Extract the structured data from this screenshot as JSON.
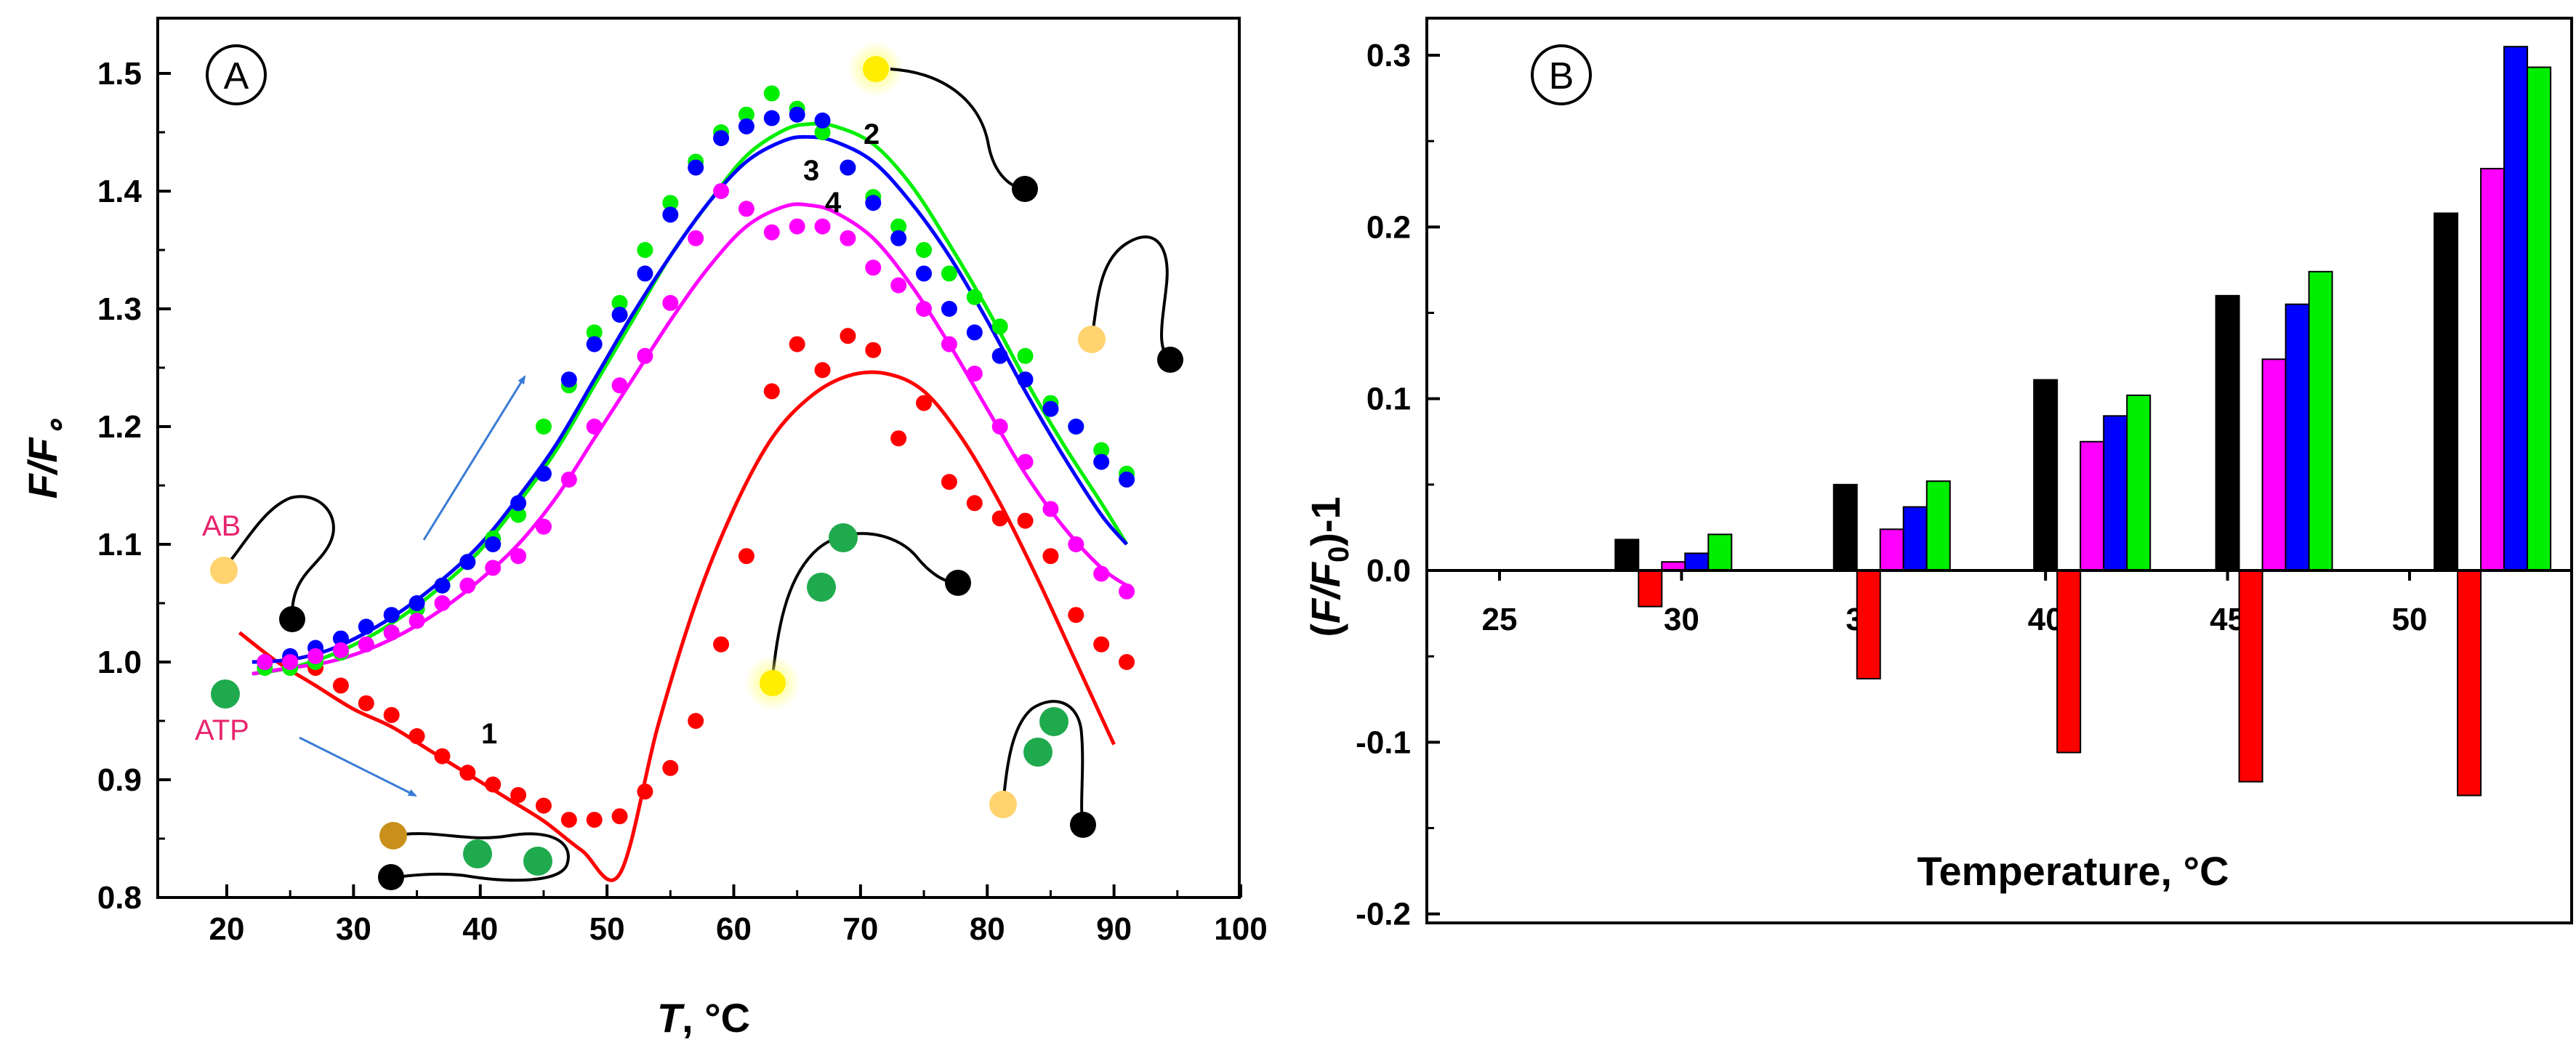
{
  "chart_data": [
    {
      "panel": "A",
      "type": "scatter",
      "xlabel": "T, °C",
      "xlabel_main": "T",
      "xlabel_unit": ", °C",
      "ylabel": "F/F∘",
      "ylabel_main": "F/F",
      "ylabel_sub": "∘",
      "xlim": [
        15,
        100
      ],
      "ylim": [
        0.8,
        1.55
      ],
      "xticks": [
        20,
        30,
        40,
        50,
        60,
        70,
        80,
        90,
        100
      ],
      "yticks": [
        0.8,
        0.9,
        1.0,
        1.1,
        1.2,
        1.3,
        1.4,
        1.5
      ],
      "xtick_labels": [
        "20",
        "30",
        "40",
        "50",
        "60",
        "70",
        "80",
        "90",
        "100"
      ],
      "ytick_labels": [
        "0.8",
        "0.9",
        "1.0",
        "1.1",
        "1.2",
        "1.3",
        "1.4",
        "1.5"
      ],
      "annotations": {
        "AB": "AB",
        "ATP": "ATP"
      },
      "series": [
        {
          "name": "1",
          "label": "1",
          "color": "#ff0000",
          "x": [
            23,
            25,
            27,
            29,
            31,
            33,
            35,
            37,
            39,
            41,
            43,
            45,
            47,
            49,
            51,
            53,
            55,
            57,
            59,
            61,
            63,
            65,
            67,
            69,
            71,
            73,
            75,
            77,
            79,
            81,
            83,
            85,
            87,
            89,
            91
          ],
          "y": [
            1.0,
            1.003,
            0.995,
            0.98,
            0.965,
            0.955,
            0.937,
            0.92,
            0.906,
            0.896,
            0.887,
            0.878,
            0.866,
            0.866,
            0.869,
            0.89,
            0.91,
            0.95,
            1.015,
            1.09,
            1.23,
            1.27,
            1.248,
            1.277,
            1.265,
            1.19,
            1.22,
            1.153,
            1.135,
            1.122,
            1.12,
            1.09,
            1.04,
            1.015,
            1.0
          ],
          "fit_x": [
            21,
            24,
            27,
            30,
            33,
            36,
            39,
            42,
            45,
            48,
            51,
            54,
            57,
            60,
            63,
            66,
            69,
            72,
            75,
            78,
            81,
            84,
            87,
            90
          ],
          "fit_y": [
            1.025,
            1.0,
            0.98,
            0.96,
            0.945,
            0.925,
            0.905,
            0.885,
            0.865,
            0.84,
            0.82,
            0.945,
            1.05,
            1.13,
            1.19,
            1.225,
            1.243,
            1.245,
            1.23,
            1.19,
            1.135,
            1.07,
            1.0,
            0.93
          ]
        },
        {
          "name": "2",
          "label": "2",
          "color": "#00ee00",
          "x": [
            23,
            25,
            27,
            29,
            31,
            33,
            35,
            37,
            39,
            41,
            43,
            45,
            47,
            49,
            51,
            53,
            55,
            57,
            59,
            61,
            63,
            65,
            67,
            69,
            71,
            73,
            75,
            77,
            79,
            81,
            83,
            85,
            87,
            89,
            91
          ],
          "y": [
            0.995,
            0.995,
            1.0,
            1.008,
            1.015,
            1.025,
            1.045,
            1.065,
            1.085,
            1.105,
            1.125,
            1.2,
            1.235,
            1.28,
            1.305,
            1.35,
            1.39,
            1.425,
            1.45,
            1.465,
            1.483,
            1.47,
            1.45,
            1.42,
            1.395,
            1.37,
            1.35,
            1.33,
            1.31,
            1.285,
            1.26,
            1.22,
            1.2,
            1.18,
            1.16
          ],
          "fit_x": [
            22,
            25,
            28,
            31,
            34,
            37,
            40,
            43,
            46,
            49,
            52,
            55,
            58,
            61,
            64,
            66,
            68,
            71,
            74,
            77,
            80,
            83,
            86,
            89,
            91
          ],
          "fit_y": [
            0.99,
            0.995,
            1.005,
            1.02,
            1.04,
            1.065,
            1.095,
            1.135,
            1.18,
            1.235,
            1.29,
            1.345,
            1.39,
            1.43,
            1.452,
            1.457,
            1.455,
            1.44,
            1.405,
            1.355,
            1.3,
            1.24,
            1.185,
            1.135,
            1.1
          ]
        },
        {
          "name": "3",
          "label": "3",
          "color": "#0000ff",
          "x": [
            23,
            25,
            27,
            29,
            31,
            33,
            35,
            37,
            39,
            41,
            43,
            45,
            47,
            49,
            51,
            53,
            55,
            57,
            59,
            61,
            63,
            65,
            67,
            69,
            71,
            73,
            75,
            77,
            79,
            81,
            83,
            85,
            87,
            89,
            91
          ],
          "y": [
            1.0,
            1.005,
            1.012,
            1.02,
            1.03,
            1.04,
            1.05,
            1.065,
            1.085,
            1.1,
            1.135,
            1.16,
            1.24,
            1.27,
            1.295,
            1.33,
            1.38,
            1.42,
            1.445,
            1.455,
            1.462,
            1.465,
            1.46,
            1.42,
            1.39,
            1.36,
            1.33,
            1.3,
            1.28,
            1.26,
            1.24,
            1.215,
            1.2,
            1.17,
            1.155
          ],
          "fit_x": [
            22,
            25,
            28,
            31,
            34,
            37,
            40,
            43,
            46,
            49,
            52,
            55,
            58,
            61,
            64,
            66,
            68,
            71,
            74,
            77,
            80,
            83,
            86,
            89,
            91
          ],
          "fit_y": [
            1.0,
            1.002,
            1.01,
            1.025,
            1.045,
            1.07,
            1.1,
            1.14,
            1.185,
            1.24,
            1.295,
            1.345,
            1.39,
            1.425,
            1.443,
            1.446,
            1.442,
            1.425,
            1.39,
            1.345,
            1.29,
            1.23,
            1.175,
            1.125,
            1.1
          ]
        },
        {
          "name": "4",
          "label": "4",
          "color": "#ff00ff",
          "x": [
            23,
            25,
            27,
            29,
            31,
            33,
            35,
            37,
            39,
            41,
            43,
            45,
            47,
            49,
            51,
            53,
            55,
            57,
            59,
            61,
            63,
            65,
            67,
            69,
            71,
            73,
            75,
            77,
            79,
            81,
            83,
            85,
            87,
            89,
            91
          ],
          "y": [
            1.0,
            1.0,
            1.005,
            1.01,
            1.015,
            1.025,
            1.035,
            1.05,
            1.065,
            1.08,
            1.09,
            1.115,
            1.155,
            1.2,
            1.235,
            1.26,
            1.305,
            1.36,
            1.4,
            1.385,
            1.365,
            1.37,
            1.37,
            1.36,
            1.335,
            1.32,
            1.3,
            1.27,
            1.245,
            1.2,
            1.17,
            1.13,
            1.1,
            1.075,
            1.06
          ],
          "fit_x": [
            22,
            25,
            28,
            31,
            34,
            37,
            40,
            43,
            46,
            49,
            52,
            55,
            58,
            61,
            64,
            66,
            68,
            71,
            74,
            77,
            80,
            83,
            86,
            89,
            91
          ],
          "fit_y": [
            0.99,
            0.995,
            1.0,
            1.01,
            1.025,
            1.045,
            1.07,
            1.1,
            1.14,
            1.19,
            1.24,
            1.29,
            1.335,
            1.37,
            1.387,
            1.388,
            1.382,
            1.36,
            1.32,
            1.27,
            1.215,
            1.16,
            1.115,
            1.08,
            1.065
          ]
        }
      ]
    },
    {
      "panel": "B",
      "type": "bar",
      "xlabel": "Temperature, °C",
      "xlabel_main": "Temperature, ",
      "xlabel_unit": "°C",
      "ylabel": "(F/F0)-1",
      "ylabel_open": "(",
      "ylabel_main": "F/F",
      "ylabel_sub": "0",
      "ylabel_close": ")-1",
      "xlim": [
        23.5,
        53.5
      ],
      "ylim": [
        -0.2,
        0.32
      ],
      "xticks": [
        25,
        30,
        35,
        40,
        45,
        50
      ],
      "yticks": [
        -0.2,
        -0.1,
        0.0,
        0.1,
        0.2,
        0.3
      ],
      "xtick_labels": [
        "25",
        "30",
        "35",
        "40",
        "45",
        "50"
      ],
      "ytick_labels": [
        "-0.2",
        "-0.1",
        "0.0",
        "0.1",
        "0.2",
        "0.3"
      ],
      "categories": [
        28.5,
        34.5,
        40.0,
        45.0,
        51.0
      ],
      "series": [
        {
          "name": "black",
          "color": "#000000",
          "values": [
            0.018,
            0.05,
            0.111,
            0.16,
            0.208
          ]
        },
        {
          "name": "red",
          "color": "#ff0000",
          "values": [
            -0.021,
            -0.063,
            -0.106,
            -0.123,
            -0.131
          ]
        },
        {
          "name": "magenta",
          "color": "#ff00ff",
          "values": [
            0.005,
            0.024,
            0.075,
            0.123,
            0.234
          ]
        },
        {
          "name": "blue",
          "color": "#0000ff",
          "values": [
            0.01,
            0.037,
            0.09,
            0.155,
            0.305
          ]
        },
        {
          "name": "green",
          "color": "#00ee00",
          "values": [
            0.021,
            0.052,
            0.102,
            0.174,
            0.293
          ]
        }
      ]
    }
  ]
}
